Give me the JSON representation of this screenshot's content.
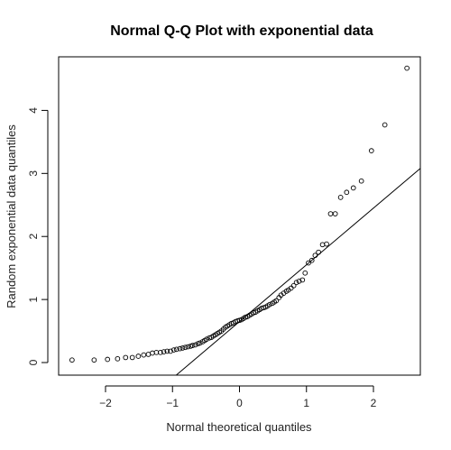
{
  "chart_data": {
    "type": "scatter",
    "title": "Normal Q-Q Plot with exponential data",
    "xlabel": "Normal theoretical quantiles",
    "ylabel": "Random exponential data quantiles",
    "xlim": [
      -2.7,
      2.7
    ],
    "ylim": [
      -0.2,
      4.85
    ],
    "xticks": [
      -2,
      -1,
      0,
      1,
      2
    ],
    "yticks": [
      0,
      1,
      2,
      3,
      4
    ],
    "grid": false,
    "marker": "open-circle",
    "reference_line": {
      "slope": 0.9,
      "intercept": 0.65
    },
    "points": [
      [
        -2.5,
        0.04
      ],
      [
        -2.17,
        0.04
      ],
      [
        -1.97,
        0.05
      ],
      [
        -1.82,
        0.06
      ],
      [
        -1.7,
        0.08
      ],
      [
        -1.6,
        0.08
      ],
      [
        -1.51,
        0.1
      ],
      [
        -1.43,
        0.12
      ],
      [
        -1.36,
        0.13
      ],
      [
        -1.3,
        0.15
      ],
      [
        -1.24,
        0.16
      ],
      [
        -1.18,
        0.16
      ],
      [
        -1.13,
        0.17
      ],
      [
        -1.08,
        0.18
      ],
      [
        -1.03,
        0.18
      ],
      [
        -0.98,
        0.2
      ],
      [
        -0.94,
        0.21
      ],
      [
        -0.89,
        0.22
      ],
      [
        -0.85,
        0.23
      ],
      [
        -0.81,
        0.24
      ],
      [
        -0.77,
        0.25
      ],
      [
        -0.73,
        0.26
      ],
      [
        -0.7,
        0.27
      ],
      [
        -0.66,
        0.28
      ],
      [
        -0.62,
        0.3
      ],
      [
        -0.59,
        0.31
      ],
      [
        -0.55,
        0.33
      ],
      [
        -0.52,
        0.35
      ],
      [
        -0.49,
        0.37
      ],
      [
        -0.45,
        0.39
      ],
      [
        -0.42,
        0.4
      ],
      [
        -0.39,
        0.42
      ],
      [
        -0.36,
        0.44
      ],
      [
        -0.33,
        0.46
      ],
      [
        -0.3,
        0.48
      ],
      [
        -0.27,
        0.5
      ],
      [
        -0.24,
        0.53
      ],
      [
        -0.21,
        0.56
      ],
      [
        -0.18,
        0.58
      ],
      [
        -0.15,
        0.6
      ],
      [
        -0.12,
        0.62
      ],
      [
        -0.09,
        0.63
      ],
      [
        -0.06,
        0.65
      ],
      [
        -0.03,
        0.66
      ],
      [
        0.0,
        0.67
      ],
      [
        0.03,
        0.68
      ],
      [
        0.06,
        0.7
      ],
      [
        0.09,
        0.72
      ],
      [
        0.12,
        0.73
      ],
      [
        0.15,
        0.75
      ],
      [
        0.18,
        0.77
      ],
      [
        0.21,
        0.79
      ],
      [
        0.24,
        0.8
      ],
      [
        0.27,
        0.82
      ],
      [
        0.3,
        0.84
      ],
      [
        0.33,
        0.86
      ],
      [
        0.36,
        0.87
      ],
      [
        0.39,
        0.88
      ],
      [
        0.42,
        0.9
      ],
      [
        0.45,
        0.92
      ],
      [
        0.49,
        0.94
      ],
      [
        0.52,
        0.96
      ],
      [
        0.55,
        0.98
      ],
      [
        0.59,
        1.03
      ],
      [
        0.62,
        1.07
      ],
      [
        0.66,
        1.1
      ],
      [
        0.7,
        1.13
      ],
      [
        0.73,
        1.15
      ],
      [
        0.77,
        1.18
      ],
      [
        0.81,
        1.22
      ],
      [
        0.85,
        1.27
      ],
      [
        0.89,
        1.29
      ],
      [
        0.94,
        1.31
      ],
      [
        0.98,
        1.42
      ],
      [
        1.03,
        1.58
      ],
      [
        1.08,
        1.62
      ],
      [
        1.13,
        1.7
      ],
      [
        1.18,
        1.75
      ],
      [
        1.24,
        1.87
      ],
      [
        1.3,
        1.88
      ],
      [
        1.36,
        2.36
      ],
      [
        1.43,
        2.36
      ],
      [
        1.51,
        2.62
      ],
      [
        1.6,
        2.7
      ],
      [
        1.7,
        2.77
      ],
      [
        1.82,
        2.88
      ],
      [
        1.97,
        3.36
      ],
      [
        2.17,
        3.77
      ],
      [
        2.5,
        4.67
      ]
    ]
  }
}
